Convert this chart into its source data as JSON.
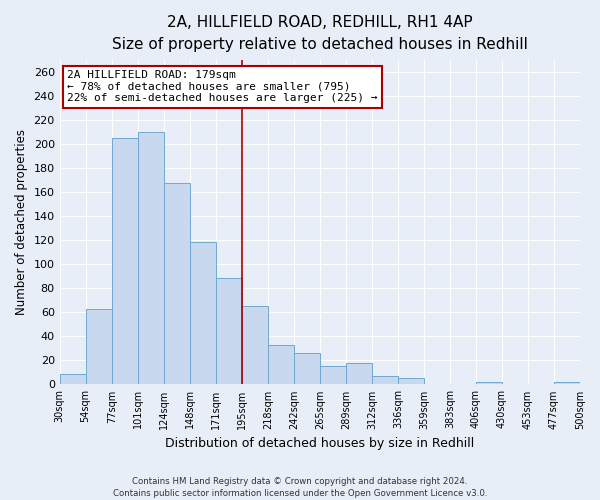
{
  "title": "2A, HILLFIELD ROAD, REDHILL, RH1 4AP",
  "subtitle": "Size of property relative to detached houses in Redhill",
  "xlabel": "Distribution of detached houses by size in Redhill",
  "ylabel": "Number of detached properties",
  "bin_labels": [
    "30sqm",
    "54sqm",
    "77sqm",
    "101sqm",
    "124sqm",
    "148sqm",
    "171sqm",
    "195sqm",
    "218sqm",
    "242sqm",
    "265sqm",
    "289sqm",
    "312sqm",
    "336sqm",
    "359sqm",
    "383sqm",
    "406sqm",
    "430sqm",
    "453sqm",
    "477sqm",
    "500sqm"
  ],
  "bar_heights": [
    9,
    63,
    205,
    210,
    168,
    119,
    89,
    65,
    33,
    26,
    15,
    18,
    7,
    5,
    0,
    0,
    2,
    0,
    0,
    2
  ],
  "bar_color": "#c8d8ee",
  "bar_edge_color": "#6fa8d0",
  "ylim": [
    0,
    270
  ],
  "yticks": [
    0,
    20,
    40,
    60,
    80,
    100,
    120,
    140,
    160,
    180,
    200,
    220,
    240,
    260
  ],
  "vline_color": "#aa0000",
  "vline_bin_index": 7,
  "annotation_box_color": "#ffffff",
  "annotation_box_edge": "#aa0000",
  "property_label": "2A HILLFIELD ROAD: 179sqm",
  "annotation_line1": "← 78% of detached houses are smaller (795)",
  "annotation_line2": "22% of semi-detached houses are larger (225) →",
  "footer_line1": "Contains HM Land Registry data © Crown copyright and database right 2024.",
  "footer_line2": "Contains public sector information licensed under the Open Government Licence v3.0.",
  "background_color": "#e8eef8",
  "grid_color": "#ffffff",
  "title_fontsize": 11,
  "subtitle_fontsize": 9
}
